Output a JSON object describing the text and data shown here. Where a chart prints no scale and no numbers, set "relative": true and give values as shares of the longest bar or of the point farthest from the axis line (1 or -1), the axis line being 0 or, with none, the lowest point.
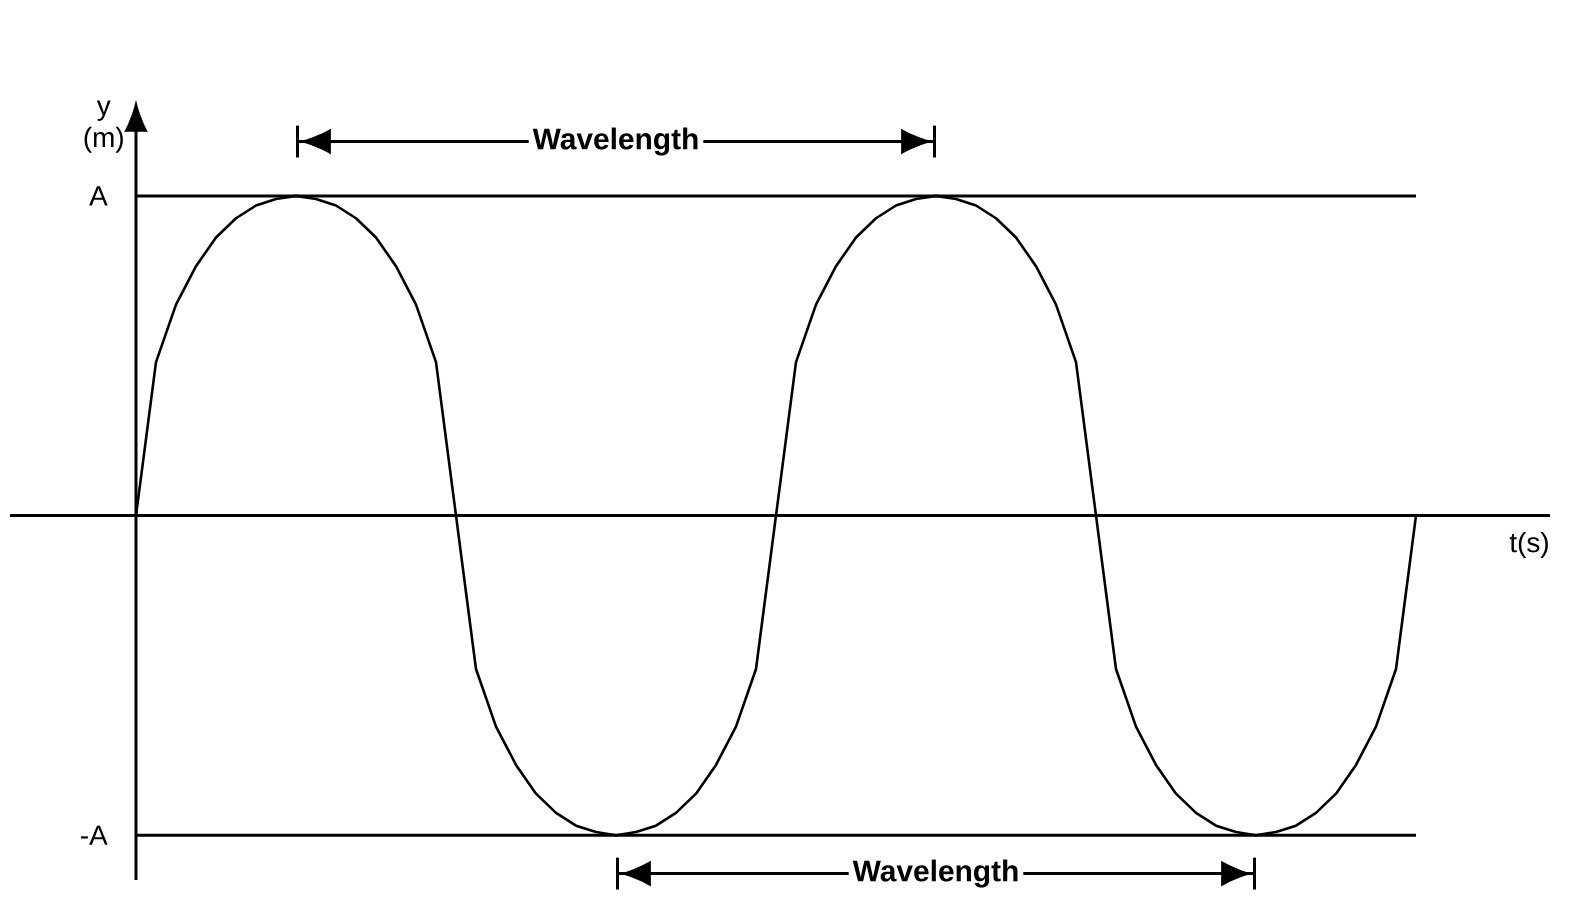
{
  "chart_data": {
    "type": "line",
    "xlabel": "t(s)",
    "ylabel": "y (m)",
    "categories": [
      null,
      null,
      null,
      null,
      null,
      null,
      null,
      null,
      null,
      null,
      null,
      null,
      null,
      null,
      null,
      null,
      null,
      null,
      null,
      null,
      null,
      null,
      null,
      null,
      null,
      null,
      null,
      null,
      null,
      null,
      null,
      null,
      null,
      null,
      null,
      null,
      null,
      null,
      null,
      null,
      null,
      null,
      null,
      null,
      null,
      null,
      null,
      null,
      null,
      null,
      null,
      null,
      null,
      null,
      null,
      null,
      null,
      null,
      null,
      null,
      null,
      null,
      null,
      null,
      null
    ],
    "series": [
      {
        "color": "#000000",
        "values": [
          0,
          0.48,
          0.66,
          0.78,
          0.87,
          0.93,
          0.97,
          0.99,
          1,
          0.99,
          0.97,
          0.93,
          0.87,
          0.78,
          0.66,
          0.48,
          0,
          -0.48,
          -0.66,
          -0.78,
          -0.87,
          -0.93,
          -0.97,
          -0.99,
          -1,
          -0.99,
          -0.97,
          -0.93,
          -0.87,
          -0.78,
          -0.66,
          -0.48,
          0,
          0.48,
          0.66,
          0.78,
          0.87,
          0.93,
          0.97,
          0.99,
          1,
          0.99,
          0.97,
          0.93,
          0.87,
          0.78,
          0.66,
          0.48,
          0,
          -0.48,
          -0.66,
          -0.78,
          -0.87,
          -0.93,
          -0.97,
          -0.99,
          -1,
          -0.99,
          -0.97,
          -0.93,
          -0.87,
          -0.78,
          -0.66,
          -0.48,
          0
        ]
      }
    ],
    "relative": true,
    "ref_lines": [
      {
        "axis": "y",
        "value": 1,
        "label": "A"
      },
      {
        "axis": "y",
        "value": -1,
        "label": "-A"
      }
    ],
    "annotations": [
      "Wavelength",
      "Wavelength"
    ]
  }
}
